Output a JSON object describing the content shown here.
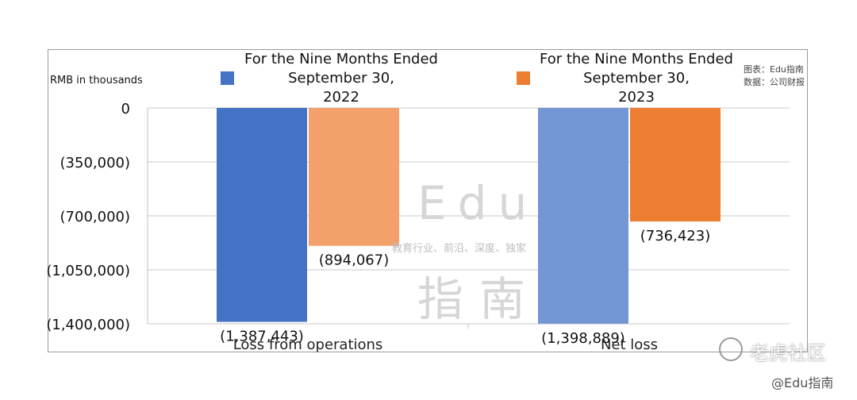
{
  "chart_data": {
    "type": "bar",
    "categories": [
      "Loss from operations",
      "Net loss"
    ],
    "series": [
      {
        "name": "For the Nine Months Ended September 30, 2022",
        "values": [
          -1387443,
          -1398889
        ],
        "labels": [
          "(1,387,443)",
          "(1,398,889)"
        ]
      },
      {
        "name": "For the Nine Months Ended September 30, 2023",
        "values": [
          -894067,
          -736423
        ],
        "labels": [
          "(894,067)",
          "(736,423)"
        ]
      }
    ],
    "ylabel": "RMB in thousands",
    "ylim": [
      -1400000,
      0
    ],
    "yticks": [
      0,
      -350000,
      -700000,
      -1050000,
      -1400000
    ],
    "ytick_labels": [
      "0",
      "(350,000)",
      "(700,000)",
      "(1,050,000)",
      "(1,400,000)"
    ],
    "grid": true,
    "legend": "top",
    "colors": {
      "s2022_bar1": "#4472c4",
      "s2022_bar2": "#7396d4",
      "s2023_bar1": "#f4a06a",
      "s2023_bar2": "#ed7d31"
    }
  },
  "legend_2022_text": "For the Nine Months Ended September 30, 2022",
  "legend_2023_text": "For the Nine Months Ended September 30, 2023",
  "source": {
    "line1": "图表：Edu指南",
    "line2": "数据：公司财报"
  },
  "watermark": {
    "big_top": "Edu",
    "tagline": "教育行业、前沿、深度、独家",
    "big_bottom": "指南"
  },
  "footer": {
    "platform": "老虎社区",
    "handle": "@Edu指南"
  }
}
